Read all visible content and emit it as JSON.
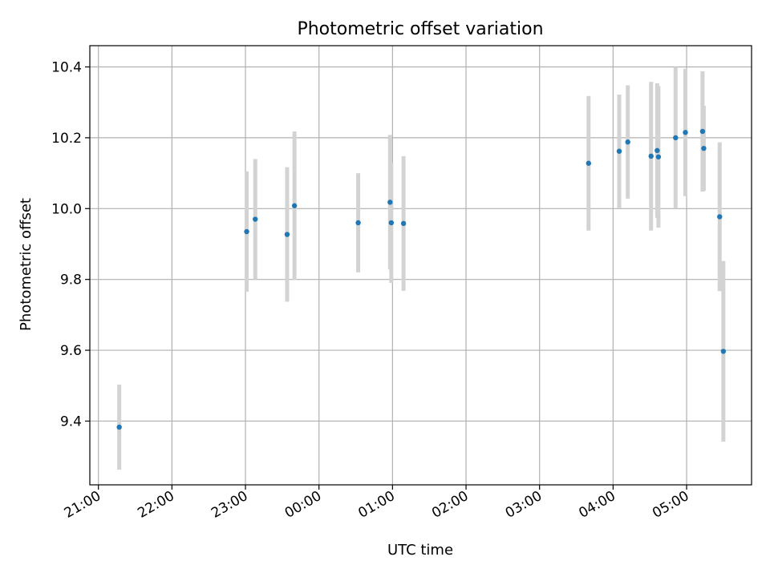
{
  "chart_data": {
    "type": "scatter",
    "title": "Photometric offset variation",
    "xlabel": "UTC time",
    "ylabel": "Photometric offset",
    "grid": true,
    "xlim": [
      "20:53",
      "29:53"
    ],
    "ylim": [
      9.22,
      10.46
    ],
    "x_ticks": [
      "21:00",
      "22:00",
      "23:00",
      "00:00",
      "01:00",
      "02:00",
      "03:00",
      "04:00",
      "05:00"
    ],
    "y_ticks": [
      "9.4",
      "9.6",
      "9.8",
      "10.0",
      "10.2",
      "10.4"
    ],
    "colors": {
      "point": "#1f77b4",
      "errorbar": "#d3d3d3",
      "grid": "#b0b0b0",
      "frame": "#000000"
    },
    "points": [
      {
        "x": "21:17",
        "y": 9.383,
        "yerr": 0.12
      },
      {
        "x": "23:01",
        "y": 9.935,
        "yerr": 0.17
      },
      {
        "x": "23:08",
        "y": 9.97,
        "yerr": 0.17
      },
      {
        "x": "23:34",
        "y": 9.927,
        "yerr": 0.19
      },
      {
        "x": "23:40",
        "y": 10.008,
        "yerr": 0.21
      },
      {
        "x": "00:32",
        "y": 9.96,
        "yerr": 0.14
      },
      {
        "x": "00:58",
        "y": 10.018,
        "yerr": 0.19
      },
      {
        "x": "00:59",
        "y": 9.96,
        "yerr": 0.17
      },
      {
        "x": "01:09",
        "y": 9.958,
        "yerr": 0.19
      },
      {
        "x": "03:40",
        "y": 10.128,
        "yerr": 0.19
      },
      {
        "x": "04:05",
        "y": 10.162,
        "yerr": 0.16
      },
      {
        "x": "04:12",
        "y": 10.188,
        "yerr": 0.16
      },
      {
        "x": "04:31",
        "y": 10.148,
        "yerr": 0.21
      },
      {
        "x": "04:36",
        "y": 10.164,
        "yerr": 0.19
      },
      {
        "x": "04:37",
        "y": 10.146,
        "yerr": 0.2
      },
      {
        "x": "04:51",
        "y": 10.2,
        "yerr": 0.2
      },
      {
        "x": "04:59",
        "y": 10.215,
        "yerr": 0.18
      },
      {
        "x": "05:13",
        "y": 10.218,
        "yerr": 0.17
      },
      {
        "x": "05:14",
        "y": 10.17,
        "yerr": 0.12
      },
      {
        "x": "05:27",
        "y": 9.977,
        "yerr": 0.21
      },
      {
        "x": "05:30",
        "y": 9.597,
        "yerr": 0.255
      }
    ]
  }
}
